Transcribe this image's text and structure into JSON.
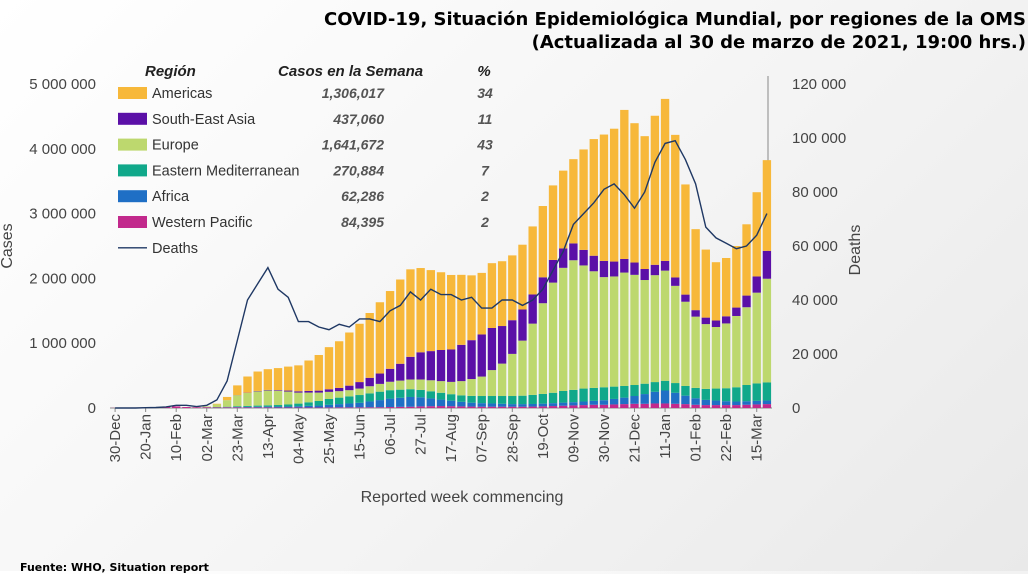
{
  "header": {
    "title_line1": "COVID-19, Situación Epidemiológica Mundial, por regiones de la OMS",
    "title_line2": "(Actualizada al 30 de marzo de 2021, 19:00 hrs.)"
  },
  "footer": {
    "source": "Fuente: WHO, Situation report"
  },
  "colors": {
    "Americas": "#F7B83A",
    "South-East Asia": "#5B10A7",
    "Europe": "#BDD86E",
    "Eastern Mediterranean": "#10A88A",
    "Africa": "#1F6FC5",
    "Western Pacific": "#C2298C",
    "Deaths": "#1F3864"
  },
  "chart_data": {
    "type": "bar",
    "stacked": true,
    "xlabel": "Reported week commencing",
    "ylabel": "Cases",
    "y2label": "Deaths",
    "ylim": [
      0,
      5000000
    ],
    "yticks": [
      "0",
      "1 000 000",
      "2 000 000",
      "3 000 000",
      "4 000 000",
      "5 000 000"
    ],
    "y2lim": [
      0,
      120000
    ],
    "y2ticks": [
      "0",
      "20 000",
      "40 000",
      "60 000",
      "80 000",
      "100 000",
      "120 000"
    ],
    "xtick_labels": [
      "30-Dec",
      "20-Jan",
      "10-Feb",
      "02-Mar",
      "23-Mar",
      "13-Apr",
      "04-May",
      "25-May",
      "15-Jun",
      "06-Jul",
      "27-Jul",
      "17-Aug",
      "07-Sep",
      "28-Sep",
      "19-Oct",
      "09-Nov",
      "30-Nov",
      "21-Dec",
      "11-Jan",
      "01-Feb",
      "22-Feb",
      "15-Mar"
    ],
    "categories": [
      "30-Dec",
      "06-Jan",
      "13-Jan",
      "20-Jan",
      "27-Jan",
      "03-Feb",
      "10-Feb",
      "17-Feb",
      "24-Feb",
      "02-Mar",
      "09-Mar",
      "16-Mar",
      "23-Mar",
      "30-Mar",
      "06-Apr",
      "13-Apr",
      "20-Apr",
      "27-Apr",
      "04-May",
      "11-May",
      "18-May",
      "25-May",
      "01-Jun",
      "08-Jun",
      "15-Jun",
      "22-Jun",
      "29-Jun",
      "06-Jul",
      "13-Jul",
      "20-Jul",
      "27-Jul",
      "03-Aug",
      "10-Aug",
      "17-Aug",
      "24-Aug",
      "31-Aug",
      "07-Sep",
      "14-Sep",
      "21-Sep",
      "28-Sep",
      "05-Oct",
      "12-Oct",
      "19-Oct",
      "26-Oct",
      "02-Nov",
      "09-Nov",
      "16-Nov",
      "23-Nov",
      "30-Nov",
      "07-Dec",
      "14-Dec",
      "21-Dec",
      "28-Dec",
      "04-Jan",
      "11-Jan",
      "18-Jan",
      "25-Jan",
      "01-Feb",
      "08-Feb",
      "15-Feb",
      "22-Feb",
      "01-Mar",
      "08-Mar",
      "15-Mar",
      "22-Mar"
    ],
    "series": [
      {
        "name": "Western Pacific",
        "values": [
          2000,
          5000,
          8000,
          10000,
          15000,
          20000,
          25000,
          15000,
          12000,
          12000,
          10000,
          10000,
          10000,
          9000,
          9000,
          9000,
          8000,
          8000,
          8000,
          8000,
          8000,
          9000,
          10000,
          10000,
          10000,
          11000,
          12000,
          15000,
          18000,
          20000,
          25000,
          28000,
          30000,
          28000,
          25000,
          22000,
          20000,
          20000,
          20000,
          20000,
          20000,
          22000,
          25000,
          30000,
          35000,
          40000,
          45000,
          50000,
          50000,
          55000,
          60000,
          65000,
          65000,
          70000,
          70000,
          65000,
          60000,
          50000,
          45000,
          45000,
          45000,
          45000,
          50000,
          55000,
          60000
        ]
      },
      {
        "name": "Africa",
        "values": [
          0,
          0,
          0,
          0,
          0,
          0,
          0,
          0,
          0,
          100,
          500,
          2000,
          5000,
          8000,
          10000,
          12000,
          14000,
          16000,
          20000,
          25000,
          30000,
          40000,
          50000,
          60000,
          70000,
          90000,
          110000,
          130000,
          140000,
          150000,
          140000,
          120000,
          100000,
          85000,
          70000,
          60000,
          55000,
          50000,
          45000,
          40000,
          40000,
          40000,
          42000,
          45000,
          48000,
          50000,
          55000,
          60000,
          70000,
          85000,
          100000,
          120000,
          150000,
          180000,
          200000,
          170000,
          130000,
          100000,
          80000,
          70000,
          60000,
          55000,
          55000,
          55000,
          55000
        ]
      },
      {
        "name": "Eastern Mediterranean",
        "values": [
          0,
          0,
          0,
          0,
          0,
          0,
          0,
          0,
          100,
          2000,
          5000,
          8000,
          12000,
          15000,
          18000,
          20000,
          24000,
          30000,
          40000,
          55000,
          70000,
          90000,
          100000,
          110000,
          120000,
          125000,
          130000,
          130000,
          125000,
          120000,
          115000,
          110000,
          105000,
          100000,
          100000,
          105000,
          110000,
          115000,
          120000,
          125000,
          130000,
          140000,
          150000,
          160000,
          180000,
          190000,
          200000,
          200000,
          200000,
          190000,
          180000,
          170000,
          160000,
          150000,
          150000,
          150000,
          150000,
          160000,
          170000,
          185000,
          200000,
          220000,
          250000,
          270000,
          280000
        ]
      },
      {
        "name": "Europe",
        "values": [
          0,
          0,
          0,
          0,
          0,
          0,
          0,
          100,
          1000,
          10000,
          40000,
          100000,
          170000,
          200000,
          220000,
          230000,
          220000,
          200000,
          170000,
          150000,
          130000,
          110000,
          100000,
          95000,
          100000,
          110000,
          120000,
          130000,
          140000,
          150000,
          160000,
          170000,
          180000,
          190000,
          220000,
          260000,
          300000,
          400000,
          500000,
          650000,
          850000,
          1100000,
          1400000,
          1700000,
          1900000,
          2000000,
          1900000,
          1800000,
          1700000,
          1700000,
          1750000,
          1700000,
          1600000,
          1650000,
          1700000,
          1500000,
          1300000,
          1100000,
          1000000,
          950000,
          1000000,
          1100000,
          1200000,
          1400000,
          1600000
        ]
      },
      {
        "name": "South-East Asia",
        "values": [
          0,
          0,
          0,
          0,
          0,
          0,
          0,
          0,
          0,
          0,
          0,
          500,
          2000,
          4000,
          6000,
          8000,
          10000,
          15000,
          20000,
          25000,
          30000,
          40000,
          50000,
          70000,
          100000,
          130000,
          160000,
          200000,
          260000,
          350000,
          420000,
          450000,
          480000,
          500000,
          560000,
          600000,
          650000,
          650000,
          580000,
          520000,
          480000,
          450000,
          400000,
          350000,
          300000,
          260000,
          240000,
          240000,
          250000,
          230000,
          210000,
          190000,
          170000,
          160000,
          150000,
          130000,
          110000,
          100000,
          100000,
          100000,
          110000,
          130000,
          180000,
          250000,
          430000
        ]
      },
      {
        "name": "Americas",
        "values": [
          0,
          0,
          0,
          0,
          0,
          0,
          0,
          0,
          0,
          0,
          10000,
          50000,
          150000,
          250000,
          300000,
          320000,
          340000,
          370000,
          400000,
          470000,
          550000,
          650000,
          720000,
          820000,
          900000,
          1000000,
          1100000,
          1200000,
          1300000,
          1350000,
          1300000,
          1250000,
          1200000,
          1150000,
          1080000,
          1000000,
          950000,
          1000000,
          1000000,
          1000000,
          1000000,
          1050000,
          1100000,
          1150000,
          1200000,
          1300000,
          1550000,
          1800000,
          1950000,
          2050000,
          2300000,
          2150000,
          2050000,
          2300000,
          2500000,
          2200000,
          1700000,
          1250000,
          1050000,
          900000,
          900000,
          950000,
          1100000,
          1300000,
          1400000
        ]
      }
    ],
    "deaths_series": {
      "name": "Deaths",
      "values": [
        0,
        0,
        0,
        100,
        200,
        400,
        1000,
        1000,
        500,
        1000,
        3000,
        10000,
        25000,
        40000,
        46000,
        52000,
        44000,
        41000,
        32000,
        32000,
        30000,
        29000,
        31000,
        30000,
        33000,
        33000,
        32000,
        36000,
        38000,
        43000,
        40000,
        44000,
        42000,
        42000,
        40000,
        41000,
        37000,
        37000,
        40000,
        40000,
        38000,
        40000,
        44000,
        51000,
        58000,
        68000,
        72000,
        76000,
        81000,
        83000,
        79000,
        74000,
        80000,
        91000,
        98000,
        99000,
        92000,
        83000,
        67000,
        63000,
        61000,
        59000,
        60000,
        64000,
        72000
      ]
    },
    "legend": {
      "title_region": "Región",
      "title_cases": "Casos en la Semana",
      "title_pct": "%",
      "entries": [
        {
          "name": "Americas",
          "cases": "1,306,017",
          "pct": "34"
        },
        {
          "name": "South-East Asia",
          "cases": "437,060",
          "pct": "11"
        },
        {
          "name": "Europe",
          "cases": "1,641,672",
          "pct": "43"
        },
        {
          "name": "Eastern Mediterranean",
          "cases": "270,884",
          "pct": "7"
        },
        {
          "name": "Africa",
          "cases": "62,286",
          "pct": "2"
        },
        {
          "name": "Western Pacific",
          "cases": "84,395",
          "pct": "2"
        },
        {
          "name": "Deaths",
          "cases": "",
          "pct": ""
        }
      ]
    }
  }
}
